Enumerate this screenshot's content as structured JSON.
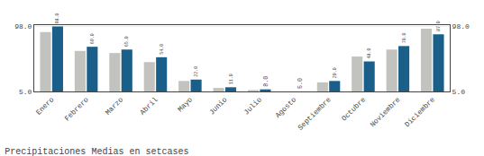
{
  "chart_data": {
    "type": "bar",
    "title": "Precipitaciones Medias en setcases",
    "categories": [
      "Enero",
      "Febrero",
      "Marzo",
      "Abril",
      "Mayo",
      "Junio",
      "Julio",
      "Agosto",
      "Septiembre",
      "Octubre",
      "Noviembre",
      "Diciembre"
    ],
    "series": [
      {
        "color": "#c2c2be",
        "values": [
          90.0,
          63.0,
          60.0,
          47.0,
          20.0,
          10.0,
          7.0,
          5.0,
          18.0,
          55.0,
          65.0,
          95.0
        ]
      },
      {
        "color": "#1a5f8a",
        "values": [
          98.0,
          69.0,
          65.0,
          54.0,
          22.0,
          11.0,
          8.0,
          5.0,
          20.0,
          48.0,
          70.0,
          87.0
        ],
        "data_labels": true,
        "value_labels": [
          "98.0",
          "69.0",
          "65.0",
          "54.0",
          "22.0",
          "11.0",
          "8.0",
          "5.0",
          "20.0",
          "48.0",
          "70.0",
          "87.0"
        ]
      }
    ],
    "ylim": [
      5,
      100
    ],
    "yticks": [
      {
        "value": 5,
        "label": "5.0"
      },
      {
        "value": 98,
        "label": "98.0"
      }
    ],
    "y2lim": [
      5,
      100
    ],
    "y2ticks": [
      {
        "value": 5,
        "label": "5.0"
      },
      {
        "value": 98,
        "label": "98.0"
      }
    ],
    "grid": true
  }
}
